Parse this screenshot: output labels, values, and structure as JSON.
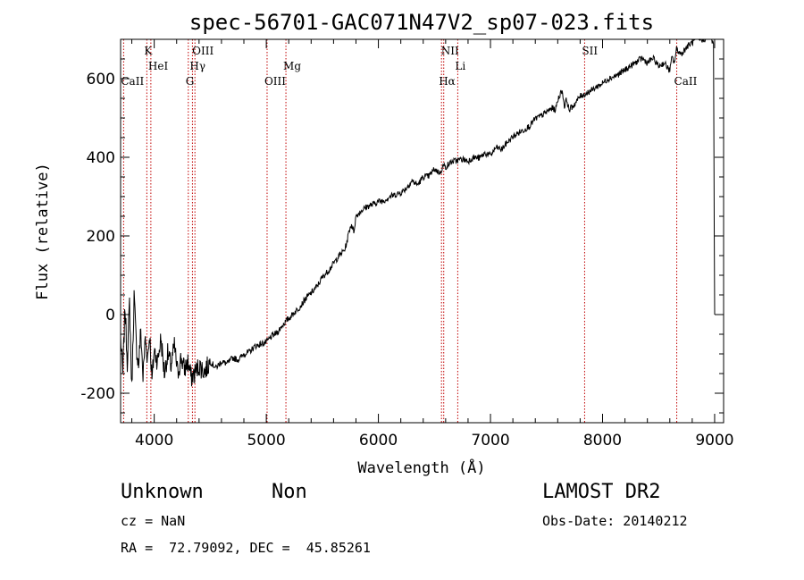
{
  "chart_data": {
    "type": "line",
    "title": "spec-56701-GAC071N47V2_sp07-023.fits",
    "xlabel": "Wavelength (Å)",
    "ylabel": "Flux (relative)",
    "xlim": [
      3700,
      9080
    ],
    "ylim": [
      -275,
      700
    ],
    "xticks": [
      4000,
      5000,
      6000,
      7000,
      8000,
      9000
    ],
    "yticks": [
      -200,
      0,
      200,
      400,
      600
    ],
    "grid": false,
    "series": [
      {
        "x": [
          3700,
          3720,
          3740,
          3760,
          3780,
          3800,
          3820,
          3840,
          3860,
          3880,
          3900,
          3920,
          3940,
          3960,
          3980,
          4000,
          4030,
          4060,
          4090,
          4120,
          4150,
          4180,
          4210,
          4240,
          4270,
          4300,
          4330,
          4360,
          4400,
          4450,
          4500,
          4550,
          4600,
          4650,
          4700,
          4750,
          4800,
          4850,
          4900,
          4950,
          5000,
          5050,
          5100,
          5150,
          5200,
          5250,
          5300,
          5350,
          5400,
          5450,
          5500,
          5550,
          5600,
          5650,
          5700,
          5720,
          5740,
          5760,
          5780,
          5800,
          5850,
          5900,
          5950,
          6000,
          6050,
          6100,
          6150,
          6200,
          6250,
          6300,
          6350,
          6400,
          6450,
          6500,
          6550,
          6580,
          6600,
          6650,
          6700,
          6750,
          6800,
          6850,
          6900,
          6950,
          7000,
          7050,
          7100,
          7150,
          7200,
          7250,
          7300,
          7350,
          7400,
          7450,
          7500,
          7550,
          7580,
          7600,
          7620,
          7640,
          7660,
          7680,
          7700,
          7750,
          7800,
          7850,
          7900,
          7950,
          8000,
          8050,
          8100,
          8150,
          8200,
          8250,
          8300,
          8350,
          8400,
          8450,
          8500,
          8550,
          8600,
          8620,
          8640,
          8660,
          8700,
          8750,
          8800,
          8850,
          8900,
          8950,
          8990,
          9000
        ],
        "y": [
          -60,
          -150,
          20,
          -120,
          30,
          -190,
          50,
          -80,
          -130,
          -40,
          -160,
          -60,
          -110,
          -50,
          -170,
          -90,
          -120,
          -60,
          -150,
          -100,
          -130,
          -80,
          -150,
          -110,
          -140,
          -120,
          -160,
          -150,
          -130,
          -145,
          -120,
          -135,
          -120,
          -125,
          -110,
          -115,
          -100,
          -95,
          -80,
          -75,
          -70,
          -55,
          -45,
          -25,
          -10,
          5,
          20,
          40,
          55,
          70,
          95,
          110,
          130,
          150,
          165,
          185,
          215,
          230,
          210,
          250,
          265,
          275,
          280,
          288,
          290,
          300,
          305,
          310,
          322,
          340,
          330,
          350,
          352,
          370,
          360,
          380,
          375,
          388,
          392,
          395,
          390,
          400,
          398,
          410,
          405,
          425,
          420,
          438,
          452,
          462,
          470,
          480,
          498,
          505,
          515,
          525,
          520,
          545,
          560,
          570,
          530,
          548,
          520,
          535,
          555,
          562,
          570,
          580,
          588,
          600,
          605,
          612,
          622,
          632,
          642,
          652,
          640,
          652,
          632,
          640,
          620,
          655,
          640,
          675,
          662,
          680,
          692,
          702,
          698,
          712,
          688,
          0
        ]
      }
    ],
    "line_marks": [
      {
        "label": "CaII",
        "x": 3727,
        "row": 3
      },
      {
        "label": "K",
        "x": 3934,
        "row": 1
      },
      {
        "label": "HeI",
        "x": 3970,
        "row": 2
      },
      {
        "label": "OIII",
        "x": 4363,
        "row": 1
      },
      {
        "label": "Hγ",
        "x": 4341,
        "row": 2
      },
      {
        "label": "G",
        "x": 4304,
        "row": 3
      },
      {
        "label": "OIII",
        "x": 5007,
        "row": 3
      },
      {
        "label": "Mg",
        "x": 5175,
        "row": 2
      },
      {
        "label": "NII",
        "x": 6583,
        "row": 1
      },
      {
        "label": "Hα",
        "x": 6563,
        "row": 3
      },
      {
        "label": "Li",
        "x": 6708,
        "row": 2
      },
      {
        "label": "SII",
        "x": 7840,
        "row": 1
      },
      {
        "label": "CaII",
        "x": 8662,
        "row": 3
      }
    ]
  },
  "info": {
    "object_class": "Unknown",
    "subclass": "Non",
    "survey": "LAMOST DR2",
    "cz": "cz = NaN",
    "obs_date": "Obs-Date: 20140212",
    "coords": "RA =  72.79092, DEC =  45.85261"
  },
  "colors": {
    "axis": "#000000",
    "spectrum": "#000000",
    "line_marker": "#c00000"
  }
}
